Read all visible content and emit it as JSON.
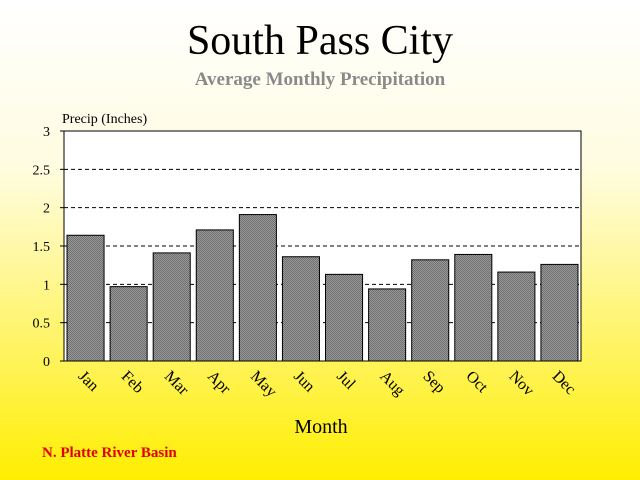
{
  "title": "South Pass City",
  "subtitle": "Average Monthly Precipitation",
  "footer": "N. Platte River Basin",
  "chart_data": {
    "type": "bar",
    "categories": [
      "Jan",
      "Feb",
      "Mar",
      "Apr",
      "May",
      "Jun",
      "Jul",
      "Aug",
      "Sep",
      "Oct",
      "Nov",
      "Dec"
    ],
    "values": [
      1.64,
      0.97,
      1.41,
      1.71,
      1.91,
      1.36,
      1.13,
      0.94,
      1.32,
      1.39,
      1.16,
      1.26
    ],
    "title": "South Pass City",
    "subtitle": "Average Monthly Precipitation",
    "xlabel": "Month",
    "ylabel": "Precip (Inches)",
    "ylim": [
      0,
      3
    ],
    "yticks": [
      "0",
      "0.5",
      "1",
      "1.5",
      "2",
      "2.5",
      "3"
    ],
    "ytick_values": [
      0,
      0.5,
      1,
      1.5,
      2,
      2.5,
      3
    ],
    "grid": "horizontal dashed",
    "bar_color": "#8c8c8c",
    "plot_background": "#ffffff"
  }
}
